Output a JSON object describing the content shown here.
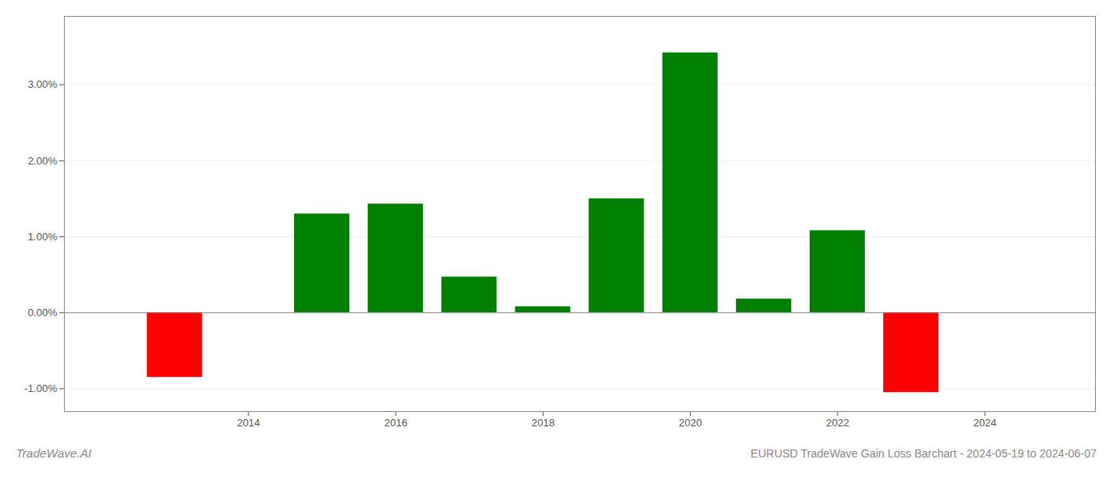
{
  "chart_data": {
    "type": "bar",
    "title": "EURUSD TradeWave Gain Loss Barchart - 2024-05-19 to 2024-06-07",
    "annotations": [
      "TradeWave.AI"
    ],
    "x": [
      2013,
      2015,
      2016,
      2017,
      2018,
      2019,
      2020,
      2021,
      2022,
      2023
    ],
    "values": [
      -0.0085,
      0.013,
      0.0143,
      0.0047,
      0.0008,
      0.015,
      0.0342,
      0.0018,
      0.0108,
      -0.0105
    ],
    "colors": [
      "#ff0000",
      "#008000",
      "#008000",
      "#008000",
      "#008000",
      "#008000",
      "#008000",
      "#008000",
      "#008000",
      "#ff0000"
    ],
    "xlim": [
      2011.5,
      2025.5
    ],
    "xticks": [
      2014,
      2016,
      2018,
      2020,
      2022,
      2024
    ],
    "ylim": [
      -0.013,
      0.039
    ],
    "yticks": [
      {
        "value": -0.01,
        "label": "-1.00%"
      },
      {
        "value": 0.0,
        "label": "0.00%"
      },
      {
        "value": 0.01,
        "label": "1.00%"
      },
      {
        "value": 0.02,
        "label": "2.00%"
      },
      {
        "value": 0.03,
        "label": "3.00%"
      }
    ],
    "grid": true
  }
}
